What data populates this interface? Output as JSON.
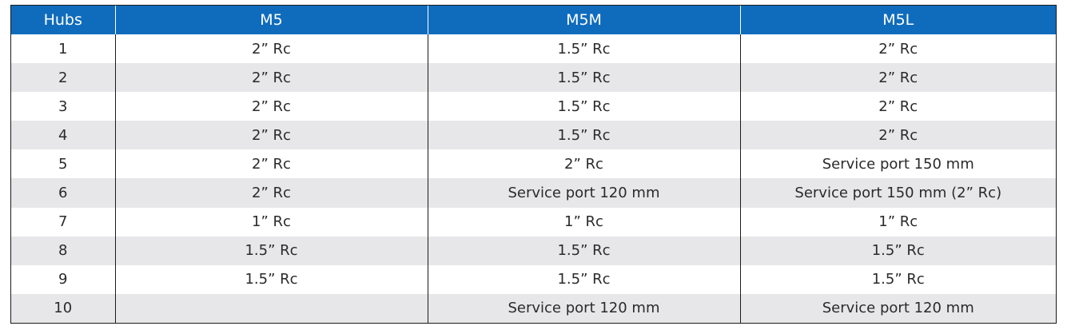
{
  "table": {
    "headers": [
      "Hubs",
      "M5",
      "M5M",
      "M5L"
    ],
    "rows": [
      [
        "1",
        "2” Rc",
        "1.5” Rc",
        "2” Rc"
      ],
      [
        "2",
        "2” Rc",
        "1.5” Rc",
        "2” Rc"
      ],
      [
        "3",
        "2” Rc",
        "1.5” Rc",
        "2” Rc"
      ],
      [
        "4",
        "2” Rc",
        "1.5” Rc",
        "2” Rc"
      ],
      [
        "5",
        "2” Rc",
        "2” Rc",
        "Service port 150 mm"
      ],
      [
        "6",
        "2” Rc",
        "Service port 120 mm",
        "Service port 150 mm (2” Rc)"
      ],
      [
        "7",
        "1” Rc",
        "1” Rc",
        "1” Rc"
      ],
      [
        "8",
        "1.5” Rc",
        "1.5” Rc",
        "1.5” Rc"
      ],
      [
        "9",
        "1.5” Rc",
        "1.5” Rc",
        "1.5” Rc"
      ],
      [
        "10",
        "",
        "Service port 120 mm",
        "Service port 120 mm"
      ]
    ],
    "colors": {
      "header_bg": "#0f6cbd",
      "header_text": "#ffffff",
      "stripe_bg": "#e7e7e9",
      "border": "#1a1a1a"
    }
  }
}
